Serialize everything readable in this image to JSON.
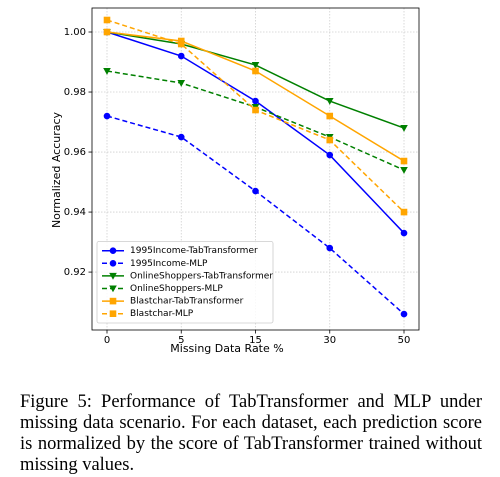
{
  "chart_data": {
    "type": "line",
    "x_label": "Missing Data Rate %",
    "y_label": "Normalized Accuracy",
    "categories": [
      "0",
      "5",
      "15",
      "30",
      "50"
    ],
    "series": [
      {
        "name": "1995Income-TabTransformer",
        "color": "#0000ff",
        "marker": "circle",
        "linestyle": "solid",
        "values": [
          1.0,
          0.992,
          0.977,
          0.959,
          0.933
        ]
      },
      {
        "name": "1995Income-MLP",
        "color": "#0000ff",
        "marker": "circle",
        "linestyle": "dashed",
        "values": [
          0.972,
          0.965,
          0.947,
          0.928,
          0.906
        ]
      },
      {
        "name": "OnlineShoppers-TabTransformer",
        "color": "#008000",
        "marker": "triangle-down",
        "linestyle": "solid",
        "values": [
          1.0,
          0.996,
          0.989,
          0.977,
          0.968
        ]
      },
      {
        "name": "OnlineShoppers-MLP",
        "color": "#008000",
        "marker": "triangle-down",
        "linestyle": "dashed",
        "values": [
          0.987,
          0.983,
          0.975,
          0.965,
          0.954
        ]
      },
      {
        "name": "Blastchar-TabTransformer",
        "color": "#ffa500",
        "marker": "square",
        "linestyle": "solid",
        "values": [
          1.0,
          0.997,
          0.987,
          0.972,
          0.957
        ]
      },
      {
        "name": "Blastchar-MLP",
        "color": "#ffa500",
        "marker": "square",
        "linestyle": "dashed",
        "values": [
          1.004,
          0.996,
          0.974,
          0.964,
          0.94
        ]
      }
    ],
    "ylim": [
      0.9007,
      1.008
    ],
    "yticks": [
      0.92,
      0.94,
      0.96,
      0.98,
      {
        "value": 1,
        "label": "1.00"
      }
    ],
    "grid": true,
    "legend": "lower left"
  },
  "caption": "Figure 5: Performance of TabTransformer and MLP under missing data scenario. For each dataset, each prediction score is normalized by the score of TabTransformer trained without missing values."
}
